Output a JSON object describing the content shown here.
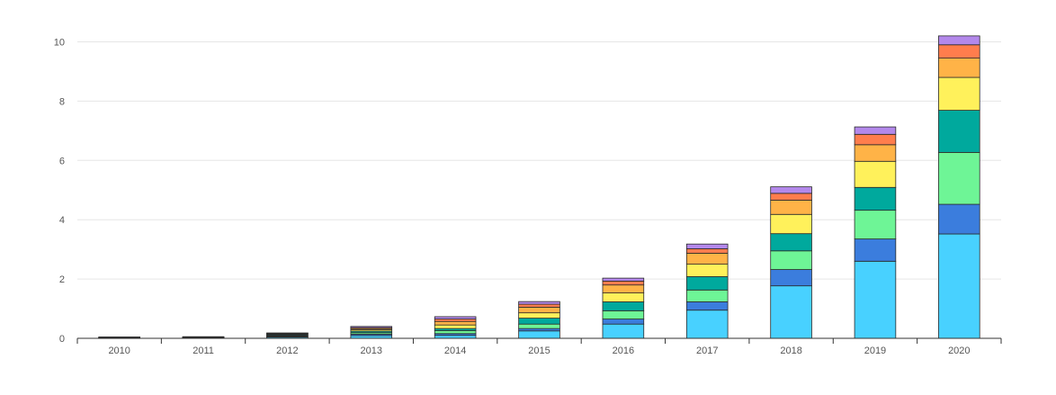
{
  "chart_data": {
    "type": "bar",
    "stacked": true,
    "categories": [
      "2010",
      "2011",
      "2012",
      "2013",
      "2014",
      "2015",
      "2016",
      "2017",
      "2018",
      "2019",
      "2020"
    ],
    "ylim": [
      0,
      10.5
    ],
    "yticks": [
      0,
      2,
      4,
      6,
      8,
      10
    ],
    "grid": true,
    "series": [
      {
        "color": "#48d1ff",
        "values": [
          0.01,
          0.015,
          0.04,
          0.09,
          0.1,
          0.25,
          0.48,
          0.95,
          1.77,
          2.6,
          3.52
        ]
      },
      {
        "color": "#3b7ddd",
        "values": [
          0.005,
          0.01,
          0.02,
          0.05,
          0.06,
          0.08,
          0.17,
          0.28,
          0.55,
          0.75,
          1.0
        ]
      },
      {
        "color": "#6ef596",
        "values": [
          0.005,
          0.005,
          0.02,
          0.05,
          0.1,
          0.15,
          0.28,
          0.4,
          0.63,
          0.97,
          1.75
        ]
      },
      {
        "color": "#00a99d",
        "values": [
          0.005,
          0.005,
          0.03,
          0.05,
          0.07,
          0.2,
          0.3,
          0.45,
          0.58,
          0.77,
          1.42
        ]
      },
      {
        "color": "#fff15b",
        "values": [
          0.005,
          0.005,
          0.025,
          0.05,
          0.12,
          0.18,
          0.3,
          0.42,
          0.65,
          0.88,
          1.11
        ]
      },
      {
        "color": "#ffb347",
        "values": [
          0.005,
          0.005,
          0.02,
          0.04,
          0.12,
          0.19,
          0.27,
          0.37,
          0.48,
          0.56,
          0.65
        ]
      },
      {
        "color": "#ff7d4d",
        "values": [
          0.005,
          0.005,
          0.02,
          0.03,
          0.08,
          0.1,
          0.13,
          0.15,
          0.23,
          0.35,
          0.45
        ]
      },
      {
        "color": "#b388eb",
        "values": [
          0.005,
          0.005,
          0.005,
          0.04,
          0.08,
          0.09,
          0.1,
          0.16,
          0.22,
          0.25,
          0.3
        ]
      }
    ]
  }
}
